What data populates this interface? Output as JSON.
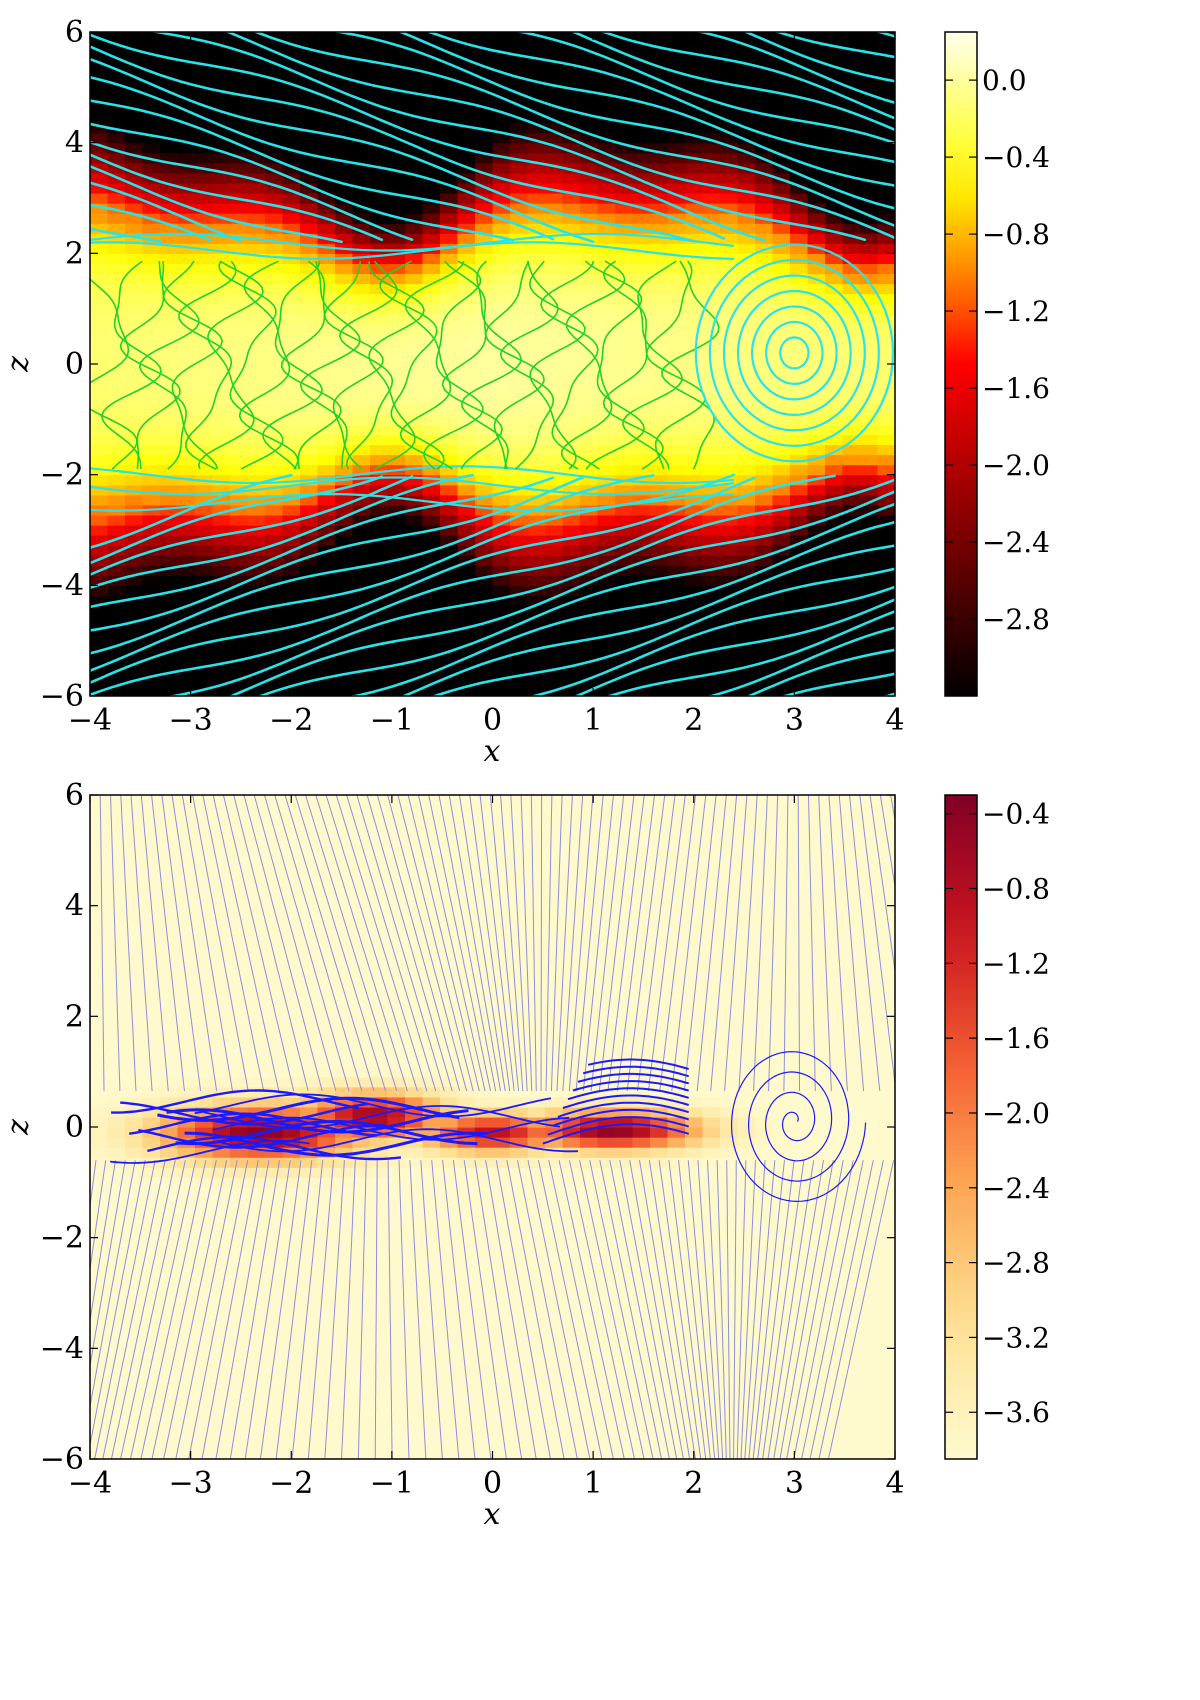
{
  "chart_data": [
    {
      "type": "heatmap",
      "xlabel": "x",
      "ylabel": "z",
      "xlim": [
        -4,
        4
      ],
      "ylim": [
        -6,
        6
      ],
      "x_ticks": [
        "−4",
        "−3",
        "−2",
        "−1",
        "0",
        "1",
        "2",
        "3",
        "4"
      ],
      "y_ticks": [
        "−6",
        "−4",
        "−2",
        "0",
        "2",
        "4",
        "6"
      ],
      "colorbar": {
        "range": [
          -3.2,
          0.25
        ],
        "ticks": [
          0.0,
          -0.4,
          -0.8,
          -1.2,
          -1.6,
          -2.0,
          -2.4,
          -2.8
        ],
        "tick_labels": [
          "0.0",
          "−0.4",
          "−0.8",
          "−1.2",
          "−1.6",
          "−2.0",
          "−2.4",
          "−2.8"
        ],
        "colormap": "afmhot"
      },
      "field_profile": {
        "core_halfwidth_z": 2.3,
        "peak_value": 0.0,
        "edge_value": -3.2
      },
      "streamline_colors": {
        "outer": "#29e3e8",
        "inner": "#22d12a"
      },
      "vortex_center": [
        3.0,
        0.2
      ]
    },
    {
      "type": "heatmap",
      "xlabel": "x",
      "ylabel": "z",
      "xlim": [
        -4,
        4
      ],
      "ylim": [
        -6,
        6
      ],
      "x_ticks": [
        "−4",
        "−3",
        "−2",
        "−1",
        "0",
        "1",
        "2",
        "3",
        "4"
      ],
      "y_ticks": [
        "−6",
        "−4",
        "−2",
        "0",
        "2",
        "4",
        "6"
      ],
      "colorbar": {
        "range": [
          -3.85,
          -0.3
        ],
        "ticks": [
          -0.4,
          -0.8,
          -1.2,
          -1.6,
          -2.0,
          -2.4,
          -2.8,
          -3.2,
          -3.6
        ],
        "tick_labels": [
          "−0.4",
          "−0.8",
          "−1.2",
          "−1.6",
          "−2.0",
          "−2.4",
          "−2.8",
          "−3.2",
          "−3.6"
        ],
        "colormap": "YlOrRd"
      },
      "blobs": [
        {
          "x": -2.3,
          "z": -0.1,
          "sx": 0.7,
          "sz": 0.35,
          "value": -0.4
        },
        {
          "x": -1.2,
          "z": 0.2,
          "sx": 0.5,
          "sz": 0.3,
          "value": -0.6
        },
        {
          "x": 0.0,
          "z": -0.1,
          "sx": 0.5,
          "sz": 0.25,
          "value": -0.9
        },
        {
          "x": 1.2,
          "z": -0.05,
          "sx": 0.6,
          "sz": 0.25,
          "value": -0.45
        }
      ],
      "streamline_colors": {
        "main": "#1a1aff",
        "faint": "#8f8fd8"
      },
      "vortex_center": [
        3.0,
        0.1
      ]
    }
  ]
}
